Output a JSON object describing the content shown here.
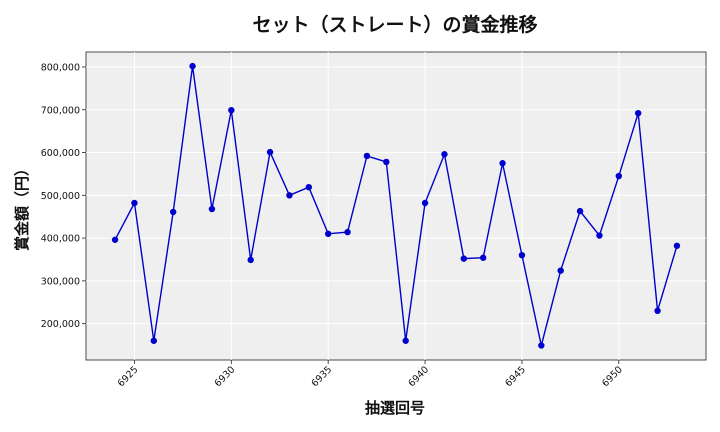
{
  "chart_data": {
    "type": "line",
    "title": "セット（ストレート）の賞金推移",
    "xlabel": "抽選回号",
    "ylabel": "賞金額（円）",
    "xlim": [
      6922.5,
      6954.5
    ],
    "ylim": [
      115000,
      835000
    ],
    "x_ticks": [
      6925,
      6930,
      6935,
      6940,
      6945,
      6950
    ],
    "x_tick_labels": [
      "6925",
      "6930",
      "6935",
      "6940",
      "6945",
      "6950"
    ],
    "y_ticks": [
      200000,
      300000,
      400000,
      500000,
      600000,
      700000,
      800000
    ],
    "y_tick_labels": [
      "200,000",
      "300,000",
      "400,000",
      "500,000",
      "600,000",
      "700,000",
      "800,000"
    ],
    "grid": true,
    "series": [
      {
        "color": "#0000cc",
        "x": [
          6924,
          6925,
          6926,
          6927,
          6928,
          6929,
          6930,
          6931,
          6932,
          6933,
          6934,
          6935,
          6936,
          6937,
          6938,
          6939,
          6940,
          6941,
          6942,
          6943,
          6944,
          6945,
          6946,
          6947,
          6948,
          6949,
          6950,
          6951,
          6952,
          6953
        ],
        "y": [
          396000,
          482000,
          160000,
          461000,
          802000,
          468000,
          699000,
          349000,
          601000,
          500000,
          519000,
          410000,
          414000,
          592000,
          578000,
          160000,
          482000,
          596000,
          352000,
          354000,
          575000,
          360000,
          149000,
          324000,
          463000,
          406000,
          545000,
          692000,
          230000,
          382000
        ]
      }
    ]
  }
}
